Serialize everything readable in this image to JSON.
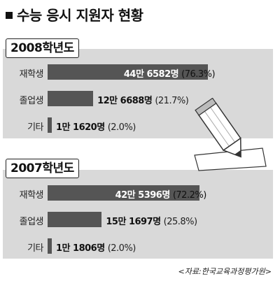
{
  "title": "수능 응시 지원자 현황",
  "source": "<자료:한국교육과정평가원>",
  "chart_data": [
    {
      "type": "bar",
      "orientation": "horizontal",
      "title": "2008학년도",
      "categories": [
        "재학생",
        "졸업생",
        "기타"
      ],
      "values": [
        446582,
        126688,
        11620
      ],
      "value_labels": [
        "44만 6582명",
        "12만 6688명",
        "1만 1620명"
      ],
      "percent_labels": [
        "(76.3%)",
        "(21.7%)",
        "(2.0%)"
      ],
      "percents": [
        76.3,
        21.7,
        2.0
      ]
    },
    {
      "type": "bar",
      "orientation": "horizontal",
      "title": "2007학년도",
      "categories": [
        "재학생",
        "졸업생",
        "기타"
      ],
      "values": [
        425396,
        151697,
        11806
      ],
      "value_labels": [
        "42만 5396명",
        "15만 1697명",
        "1만 1806명"
      ],
      "percent_labels": [
        "(72.2%)",
        "(25.8%)",
        "(2.0%)"
      ],
      "percents": [
        72.2,
        25.8,
        2.0
      ]
    }
  ],
  "colors": {
    "bar": "#555555",
    "panel": "#d9d9d9"
  }
}
